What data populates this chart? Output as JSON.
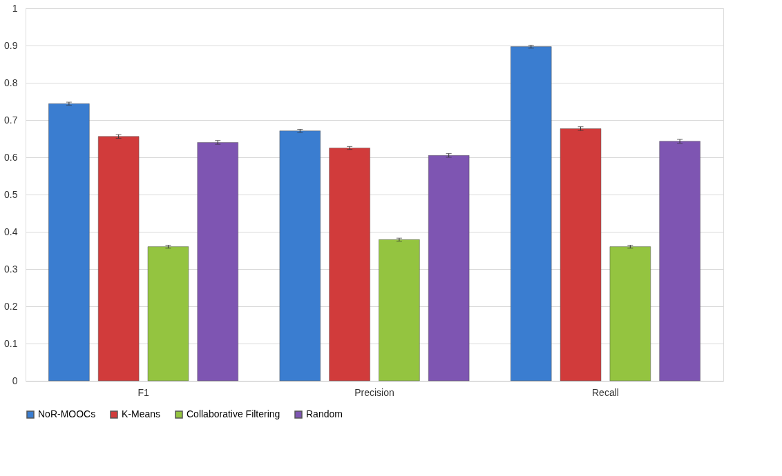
{
  "chart_data": {
    "type": "bar",
    "categories": [
      "F1",
      "Precision",
      "Recall"
    ],
    "series": [
      {
        "name": "NoR-MOOCs",
        "color": "#3a7dd0",
        "values": [
          0.744,
          0.671,
          0.897
        ],
        "errors": [
          0.004,
          0.004,
          0.004
        ]
      },
      {
        "name": "K-Means",
        "color": "#d13b3b",
        "values": [
          0.656,
          0.625,
          0.677
        ],
        "errors": [
          0.005,
          0.004,
          0.005
        ]
      },
      {
        "name": "Collaborative Filtering",
        "color": "#94c440",
        "values": [
          0.36,
          0.379,
          0.36
        ],
        "errors": [
          0.004,
          0.004,
          0.004
        ]
      },
      {
        "name": "Random",
        "color": "#7e55b2",
        "values": [
          0.64,
          0.605,
          0.643
        ],
        "errors": [
          0.005,
          0.005,
          0.005
        ]
      }
    ],
    "ylim": [
      0,
      1
    ],
    "yticks": [
      0,
      0.1,
      0.2,
      0.3,
      0.4,
      0.5,
      0.6,
      0.7,
      0.8,
      0.9,
      1
    ],
    "grid": "y",
    "legend": "bottom"
  }
}
